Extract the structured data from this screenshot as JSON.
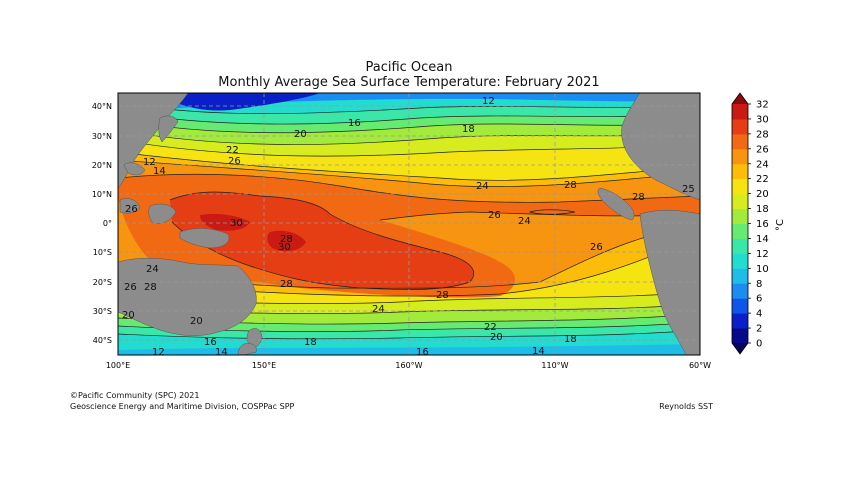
{
  "title": "Pacific Ocean",
  "subtitle": "Monthly Average Sea Surface Temperature: February 2021",
  "credit_line_1": "©Pacific Community (SPC) 2021",
  "credit_line_2": "Geoscience Energy and Maritime Division, COSPPac SPP",
  "data_source": "Reynolds SST",
  "colorbar": {
    "unit": "°C",
    "ticks": [
      0,
      2,
      4,
      6,
      8,
      10,
      12,
      14,
      16,
      18,
      20,
      22,
      24,
      26,
      28,
      30,
      32
    ],
    "colors": [
      "#08088a",
      "#0a1fc8",
      "#0f55e8",
      "#1a8cf2",
      "#1fbce8",
      "#22dcd0",
      "#3ae6a8",
      "#66ea72",
      "#a2ea3c",
      "#d6ec1e",
      "#f6e412",
      "#fbbd0a",
      "#f79410",
      "#f26914",
      "#e53e14",
      "#c91a14"
    ],
    "above_color": "#8a0a0a",
    "below_color": "#050560"
  },
  "axes": {
    "lon_labels": [
      "100°E",
      "150°E",
      "160°W",
      "110°W",
      "60°W"
    ],
    "lat_labels": [
      "40°N",
      "30°N",
      "20°N",
      "10°N",
      "0°",
      "10°S",
      "20°S",
      "30°S",
      "40°S"
    ]
  },
  "contour_labels": [
    "12",
    "18",
    "16",
    "20",
    "22",
    "26",
    "24",
    "28",
    "30",
    "14",
    "12",
    "26",
    "26",
    "28",
    "28",
    "26",
    "24",
    "28",
    "26",
    "24",
    "18",
    "22",
    "20",
    "14",
    "16",
    "20",
    "16",
    "18",
    "12",
    "28",
    "24",
    "25",
    "28",
    "20",
    "14",
    "30"
  ],
  "colors": {
    "land": "#8c8c8c",
    "grid": "#999999",
    "contour": "#222222"
  }
}
